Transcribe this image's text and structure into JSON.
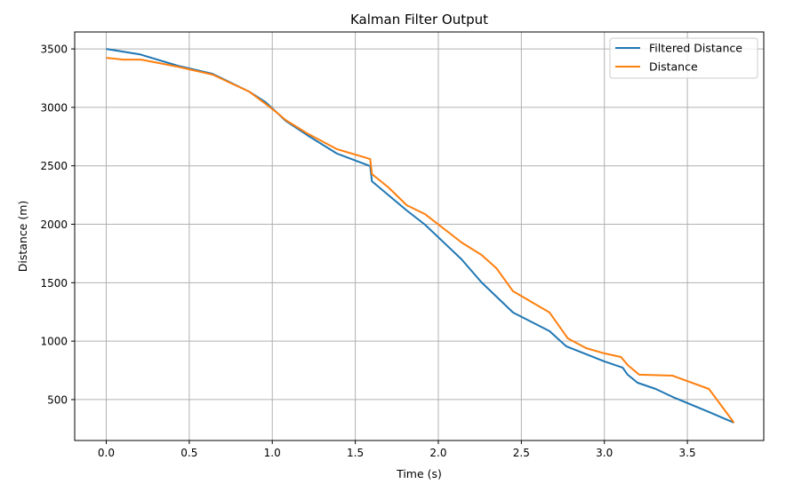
{
  "chart_data": {
    "type": "line",
    "title": "Kalman Filter Output",
    "xlabel": "Time (s)",
    "ylabel": "Distance (m)",
    "xlim": [
      -0.19,
      3.96
    ],
    "ylim": [
      150,
      3645
    ],
    "xticks": [
      0.0,
      0.5,
      1.0,
      1.5,
      2.0,
      2.5,
      3.0,
      3.5
    ],
    "xtick_labels": [
      "0.0",
      "0.5",
      "1.0",
      "1.5",
      "2.0",
      "2.5",
      "3.0",
      "3.5"
    ],
    "yticks": [
      500,
      1000,
      1500,
      2000,
      2500,
      3000,
      3500
    ],
    "ytick_labels": [
      "500",
      "1000",
      "1500",
      "2000",
      "2500",
      "3000",
      "3500"
    ],
    "grid": true,
    "legend_position": "top-right",
    "series": [
      {
        "name": "Filtered Distance",
        "color": "#1f77b4",
        "x": [
          0.0,
          0.2,
          0.43,
          0.64,
          0.86,
          0.96,
          1.03,
          1.08,
          1.21,
          1.39,
          1.59,
          1.6,
          1.81,
          1.92,
          2.14,
          2.26,
          2.45,
          2.67,
          2.77,
          3.0,
          3.11,
          3.14,
          3.2,
          3.31,
          3.41,
          3.63,
          3.78
        ],
        "y": [
          3500,
          3454,
          3356,
          3287,
          3135,
          3044,
          2953,
          2885,
          2763,
          2604,
          2497,
          2368,
          2118,
          1996,
          1700,
          1503,
          1245,
          1085,
          956,
          827,
          774,
          713,
          644,
          591,
          523,
          394,
          303
        ]
      },
      {
        "name": "Distance",
        "color": "#ff7f0e",
        "x": [
          0.0,
          0.1,
          0.21,
          0.43,
          0.64,
          0.86,
          0.96,
          1.03,
          1.08,
          1.21,
          1.39,
          1.59,
          1.6,
          1.7,
          1.81,
          1.92,
          2.14,
          2.26,
          2.35,
          2.45,
          2.67,
          2.78,
          2.89,
          3.0,
          3.1,
          3.14,
          3.21,
          3.41,
          3.63,
          3.78
        ],
        "y": [
          3424,
          3409,
          3409,
          3348,
          3280,
          3135,
          3029,
          2953,
          2892,
          2778,
          2642,
          2558,
          2429,
          2315,
          2163,
          2087,
          1844,
          1738,
          1624,
          1427,
          1245,
          1024,
          940,
          895,
          864,
          796,
          713,
          705,
          591,
          303
        ]
      }
    ]
  }
}
